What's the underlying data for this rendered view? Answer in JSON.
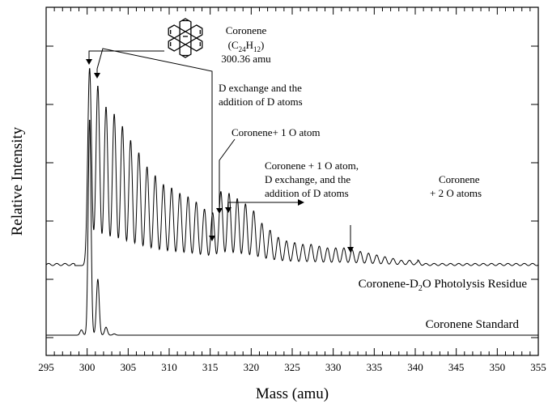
{
  "chart_data": {
    "type": "line",
    "xlabel": "Mass (amu)",
    "ylabel": "Relative Intensity",
    "xlim": [
      295,
      355
    ],
    "x_ticks": [
      "295",
      "300",
      "305",
      "310",
      "315",
      "320",
      "325",
      "330",
      "335",
      "340",
      "345",
      "350",
      "355"
    ],
    "y_ticks_visible_labels": false,
    "series": [
      {
        "name": "Coronene-D2O Photolysis Residue",
        "label_main": "Coronene-D",
        "label_sub": "2",
        "label_tail": "O Photolysis Residue",
        "baseline": 0.56,
        "peaks": [
          {
            "x": 300.3,
            "y": 1.12
          },
          {
            "x": 301.3,
            "y": 1.02
          },
          {
            "x": 302.3,
            "y": 0.9
          },
          {
            "x": 303.3,
            "y": 0.86
          },
          {
            "x": 304.3,
            "y": 0.79
          },
          {
            "x": 305.3,
            "y": 0.71
          },
          {
            "x": 306.3,
            "y": 0.64
          },
          {
            "x": 307.3,
            "y": 0.56
          },
          {
            "x": 308.3,
            "y": 0.51
          },
          {
            "x": 309.3,
            "y": 0.46
          },
          {
            "x": 310.3,
            "y": 0.44
          },
          {
            "x": 311.3,
            "y": 0.41
          },
          {
            "x": 312.3,
            "y": 0.39
          },
          {
            "x": 313.3,
            "y": 0.36
          },
          {
            "x": 314.3,
            "y": 0.32
          },
          {
            "x": 315.3,
            "y": 0.3
          },
          {
            "x": 316.3,
            "y": 0.42
          },
          {
            "x": 317.3,
            "y": 0.41
          },
          {
            "x": 318.3,
            "y": 0.38
          },
          {
            "x": 319.3,
            "y": 0.35
          },
          {
            "x": 320.3,
            "y": 0.31
          },
          {
            "x": 321.3,
            "y": 0.24
          },
          {
            "x": 322.3,
            "y": 0.2
          },
          {
            "x": 323.3,
            "y": 0.16
          },
          {
            "x": 324.3,
            "y": 0.14
          },
          {
            "x": 325.3,
            "y": 0.13
          },
          {
            "x": 326.3,
            "y": 0.12
          },
          {
            "x": 327.3,
            "y": 0.12
          },
          {
            "x": 328.3,
            "y": 0.11
          },
          {
            "x": 329.3,
            "y": 0.1
          },
          {
            "x": 330.3,
            "y": 0.1
          },
          {
            "x": 331.3,
            "y": 0.1
          },
          {
            "x": 332.3,
            "y": 0.09
          },
          {
            "x": 333.3,
            "y": 0.08
          },
          {
            "x": 334.3,
            "y": 0.07
          },
          {
            "x": 335.3,
            "y": 0.06
          },
          {
            "x": 336.3,
            "y": 0.05
          },
          {
            "x": 337.3,
            "y": 0.04
          },
          {
            "x": 338.3,
            "y": 0.03
          },
          {
            "x": 339.3,
            "y": 0.03
          },
          {
            "x": 340.3,
            "y": 0.02
          }
        ]
      },
      {
        "name": "Coronene Standard",
        "label_main": "Coronene Standard",
        "label_sub": "",
        "label_tail": "",
        "baseline": 0.0,
        "peaks": [
          {
            "x": 299.3,
            "y": 0.02
          },
          {
            "x": 300.3,
            "y": 0.81
          },
          {
            "x": 301.3,
            "y": 0.21
          },
          {
            "x": 302.3,
            "y": 0.03
          },
          {
            "x": 303.3,
            "y": 0.005
          }
        ]
      }
    ],
    "molecule": {
      "name": "Coronene",
      "formula_open": "(C",
      "formula_sub1": "24",
      "formula_mid": "H",
      "formula_sub2": "12",
      "formula_close": ")",
      "mass": "300.36 amu"
    },
    "annotations": [
      {
        "lines": [
          "D exchange and the",
          "addition of D atoms"
        ]
      },
      {
        "lines": [
          "Coronene+ 1 O atom"
        ]
      },
      {
        "lines": [
          "Coronene + 1 O atom,",
          "D exchange, and the",
          "addition of D atoms"
        ]
      },
      {
        "lines": [
          "Coronene",
          "+ 2 O atoms"
        ]
      }
    ]
  }
}
